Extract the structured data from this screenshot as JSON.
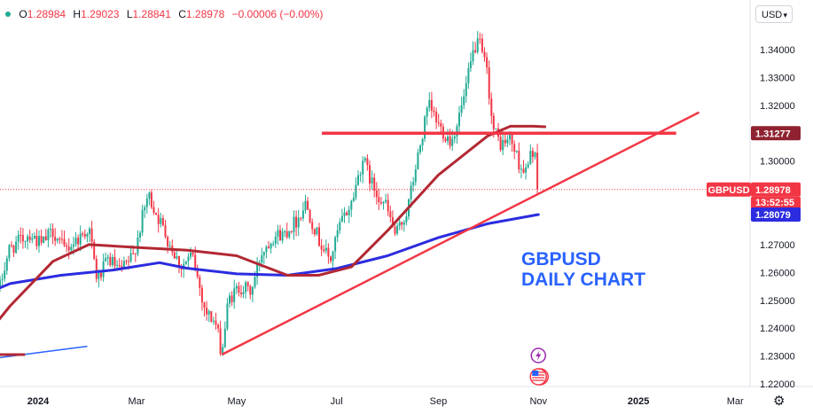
{
  "ohlc": {
    "open_label": "O",
    "open": "1.28984",
    "high_label": "H",
    "high": "1.29023",
    "low_label": "L",
    "low": "1.28841",
    "close_label": "C",
    "close": "1.28978",
    "change": "−0.00006 (−0.00%)"
  },
  "currency_button": "USD",
  "annotation": {
    "line1": "GBPUSD",
    "line2": "DAILY CHART"
  },
  "colors": {
    "up": "#22ab94",
    "down": "#f23645",
    "ma_short": "#b22833",
    "ma_long": "#2c2ce0",
    "trendline": "#f23645",
    "resistance": "#f23645",
    "annotation": "#2962ff"
  },
  "chart_data": {
    "type": "candlestick",
    "symbol": "GBPUSD",
    "ylim": [
      1.215,
      1.352
    ],
    "y_ticks": [
      "1.22000",
      "1.23000",
      "1.24000",
      "1.25000",
      "1.26000",
      "1.27000",
      "1.28000",
      "1.29000",
      "1.30000",
      "1.31000",
      "1.32000",
      "1.33000",
      "1.34000"
    ],
    "x_ticks": [
      {
        "label": "2024",
        "date": "2024-01-01"
      },
      {
        "label": "Mar",
        "date": "2024-03-01"
      },
      {
        "label": "May",
        "date": "2024-05-01"
      },
      {
        "label": "Jul",
        "date": "2024-07-01"
      },
      {
        "label": "Sep",
        "date": "2024-09-01"
      },
      {
        "label": "Nov",
        "date": "2024-11-01"
      },
      {
        "label": "2025",
        "date": "2025-01-01"
      },
      {
        "label": "Mar",
        "date": "2025-03-01"
      }
    ],
    "close_path": [
      [
        "2023-11-20",
        1.262
      ],
      [
        "2023-11-28",
        1.265
      ],
      [
        "2023-12-05",
        1.258
      ],
      [
        "2023-12-08",
        1.253
      ],
      [
        "2023-12-14",
        1.268
      ],
      [
        "2023-12-20",
        1.271
      ],
      [
        "2023-12-27",
        1.274
      ],
      [
        "2024-01-03",
        1.27
      ],
      [
        "2024-01-10",
        1.275
      ],
      [
        "2024-01-17",
        1.268
      ],
      [
        "2024-01-25",
        1.272
      ],
      [
        "2024-02-01",
        1.276
      ],
      [
        "2024-02-06",
        1.257
      ],
      [
        "2024-02-13",
        1.265
      ],
      [
        "2024-02-20",
        1.26
      ],
      [
        "2024-02-28",
        1.266
      ],
      [
        "2024-03-08",
        1.288
      ],
      [
        "2024-03-14",
        1.28
      ],
      [
        "2024-03-20",
        1.272
      ],
      [
        "2024-03-28",
        1.262
      ],
      [
        "2024-04-04",
        1.266
      ],
      [
        "2024-04-12",
        1.246
      ],
      [
        "2024-04-18",
        1.242
      ],
      [
        "2024-04-22",
        1.231
      ],
      [
        "2024-04-26",
        1.25
      ],
      [
        "2024-05-03",
        1.255
      ],
      [
        "2024-05-10",
        1.253
      ],
      [
        "2024-05-16",
        1.267
      ],
      [
        "2024-05-23",
        1.273
      ],
      [
        "2024-05-30",
        1.274
      ],
      [
        "2024-06-07",
        1.279
      ],
      [
        "2024-06-12",
        1.285
      ],
      [
        "2024-06-20",
        1.272
      ],
      [
        "2024-06-27",
        1.264
      ],
      [
        "2024-07-03",
        1.277
      ],
      [
        "2024-07-10",
        1.285
      ],
      [
        "2024-07-17",
        1.301
      ],
      [
        "2024-07-23",
        1.291
      ],
      [
        "2024-07-31",
        1.284
      ],
      [
        "2024-08-06",
        1.273
      ],
      [
        "2024-08-13",
        1.282
      ],
      [
        "2024-08-19",
        1.3
      ],
      [
        "2024-08-26",
        1.32
      ],
      [
        "2024-09-02",
        1.312
      ],
      [
        "2024-09-09",
        1.307
      ],
      [
        "2024-09-16",
        1.321
      ],
      [
        "2024-09-23",
        1.341
      ],
      [
        "2024-09-26",
        1.342
      ],
      [
        "2024-10-01",
        1.331
      ],
      [
        "2024-10-04",
        1.312
      ],
      [
        "2024-10-09",
        1.306
      ],
      [
        "2024-10-15",
        1.308
      ],
      [
        "2024-10-21",
        1.298
      ],
      [
        "2024-10-25",
        1.296
      ],
      [
        "2024-10-28",
        1.304
      ],
      [
        "2024-10-30",
        1.303
      ],
      [
        "2024-11-01",
        1.29
      ]
    ],
    "ma_short": [
      [
        "2023-11-20",
        1.23
      ],
      [
        "2023-12-15",
        1.248
      ],
      [
        "2024-01-10",
        1.264
      ],
      [
        "2024-02-01",
        1.27
      ],
      [
        "2024-03-01",
        1.269
      ],
      [
        "2024-04-01",
        1.268
      ],
      [
        "2024-05-01",
        1.266
      ],
      [
        "2024-06-01",
        1.259
      ],
      [
        "2024-06-20",
        1.259
      ],
      [
        "2024-07-10",
        1.262
      ],
      [
        "2024-08-01",
        1.275
      ],
      [
        "2024-09-01",
        1.295
      ],
      [
        "2024-10-01",
        1.309
      ],
      [
        "2024-10-15",
        1.3125
      ],
      [
        "2024-10-29",
        1.3125
      ],
      [
        "2024-11-05",
        1.3123
      ]
    ],
    "ma_long": [
      [
        "2023-11-20",
        1.25
      ],
      [
        "2023-12-15",
        1.256
      ],
      [
        "2024-01-15",
        1.259
      ],
      [
        "2024-02-15",
        1.2608
      ],
      [
        "2024-03-15",
        1.2635
      ],
      [
        "2024-04-01",
        1.2615
      ],
      [
        "2024-05-01",
        1.2595
      ],
      [
        "2024-06-01",
        1.259
      ],
      [
        "2024-07-01",
        1.2614
      ],
      [
        "2024-08-01",
        1.266
      ],
      [
        "2024-09-01",
        1.2725
      ],
      [
        "2024-10-01",
        1.2775
      ],
      [
        "2024-11-01",
        1.2808
      ]
    ],
    "lines": {
      "resistance": {
        "y": 1.31,
        "from": "2024-06-22",
        "to": "2025-01-24"
      },
      "trendline": {
        "from": [
          "2024-04-22",
          1.2305
        ],
        "to": [
          "2025-02-07",
          1.3175
        ]
      },
      "small_blue": {
        "from": [
          "2023-11-20",
          1.228
        ],
        "to": [
          "2024-01-31",
          1.2335
        ]
      },
      "small_red": {
        "y": 1.2305,
        "from": "2023-11-20",
        "to": "2023-12-24"
      }
    },
    "price_labels": {
      "resistance": "1.31277",
      "symbol": "GBPUSD",
      "last_price": "1.28978",
      "countdown": "13:52:55",
      "ma_long_value": "1.28079"
    },
    "last_price": 1.28978
  }
}
